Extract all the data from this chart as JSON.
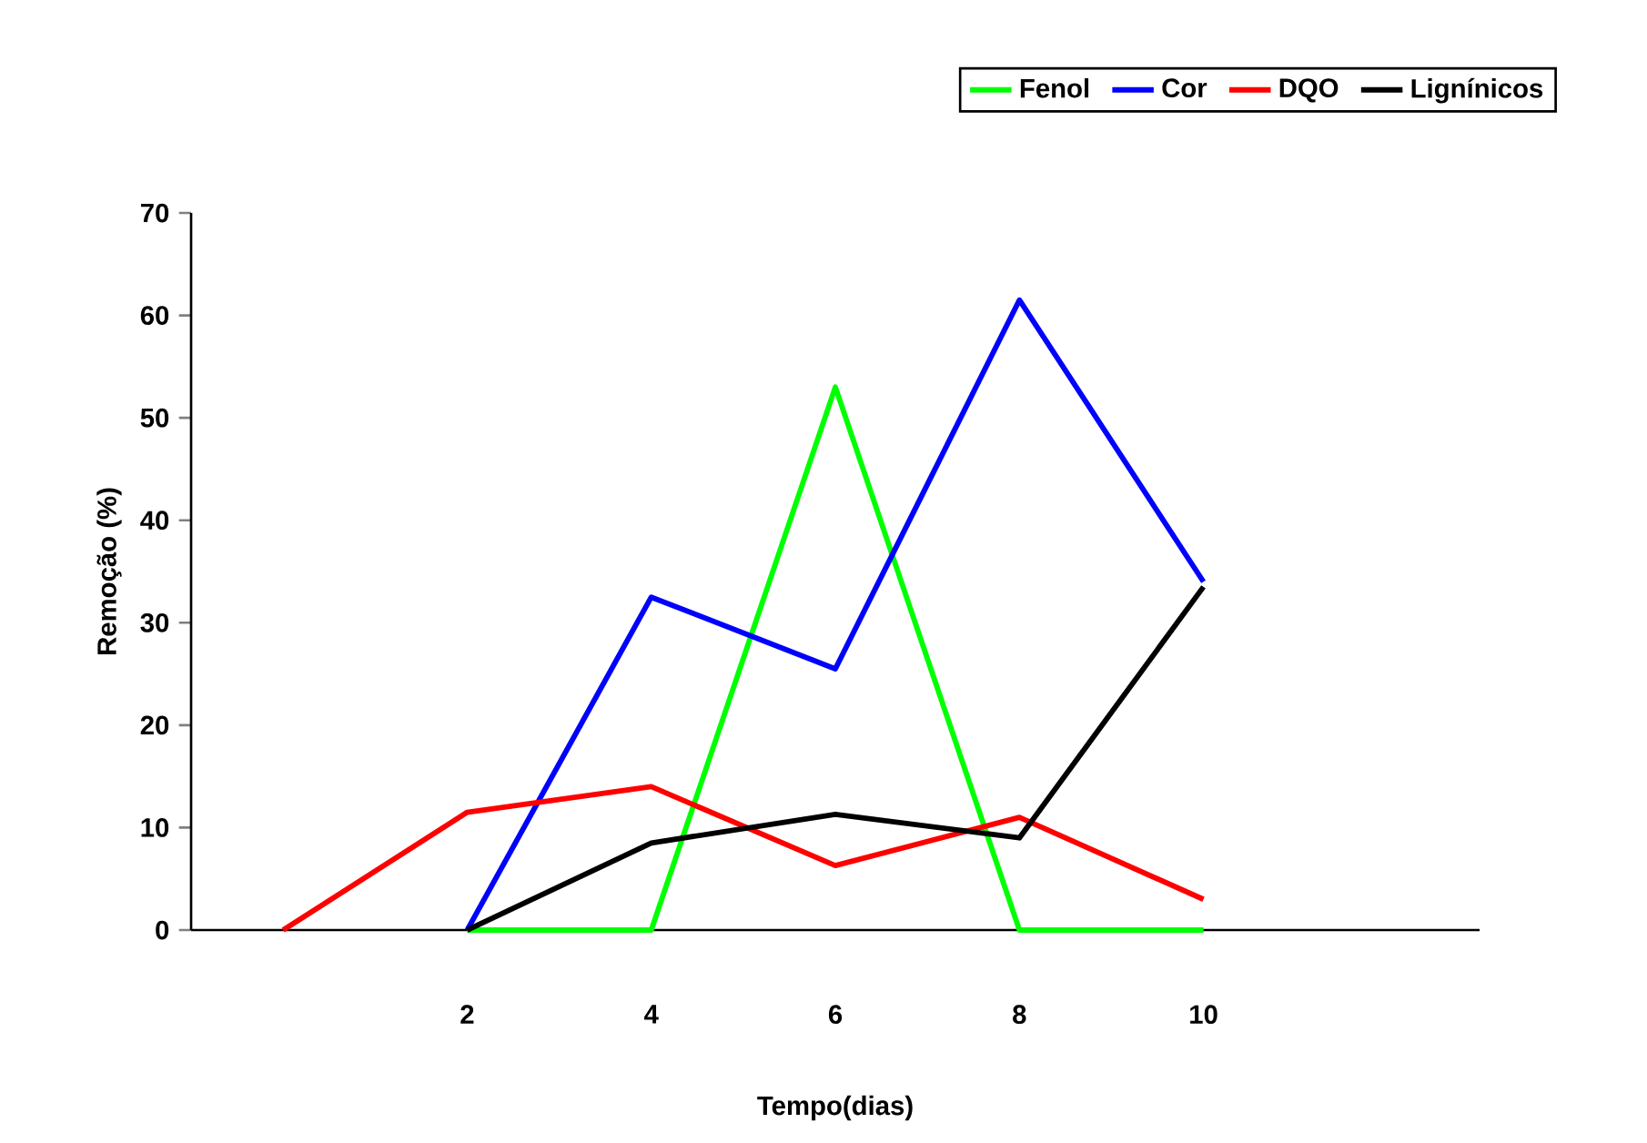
{
  "chart_data": {
    "type": "line",
    "xlabel": "Tempo(dias)",
    "ylabel": "Remoção  (%)",
    "categories": [
      null,
      "2",
      "4",
      "6",
      "8",
      "10",
      null
    ],
    "series": [
      {
        "name": "Fenol",
        "color": "#00ff00",
        "values": [
          null,
          0,
          0,
          53,
          0,
          0,
          null
        ]
      },
      {
        "name": "Cor",
        "color": "#0000ff",
        "values": [
          null,
          0,
          32.5,
          25.5,
          61.5,
          34,
          null
        ]
      },
      {
        "name": "DQO",
        "color": "#ff0000",
        "values": [
          0,
          11.5,
          14,
          6.3,
          11,
          3,
          null
        ]
      },
      {
        "name": "Lignínicos",
        "color": "#000000",
        "values": [
          null,
          0,
          8.5,
          11.3,
          9,
          33.5,
          null
        ]
      }
    ],
    "ylim": [
      0,
      70
    ],
    "yticks": [
      0,
      10,
      20,
      30,
      40,
      50,
      60,
      70
    ],
    "grid": false,
    "legend": "top right",
    "marker": "none",
    "line_style": "solid"
  }
}
